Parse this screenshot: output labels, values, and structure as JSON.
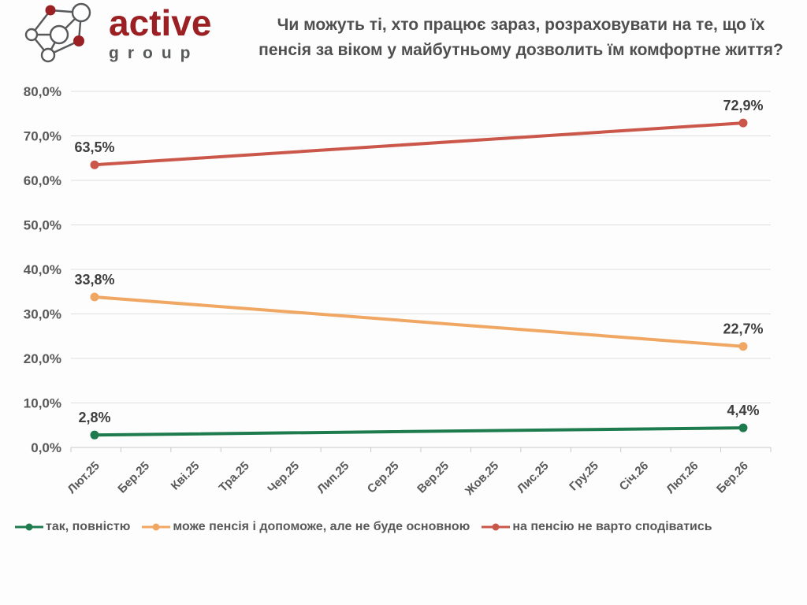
{
  "logo": {
    "brand": "active",
    "word": "group"
  },
  "title_lines": [
    "Чи можуть ті, хто працює зараз, розраховувати на те, що їх",
    "пенсія за віком у майбутньому дозволить їм комфортне життя?"
  ],
  "chart_data": {
    "type": "line",
    "title": "Чи можуть ті, хто працює зараз, розраховувати на те, що їх пенсія за віком у майбутньому дозволить їм комфортне життя?",
    "categories": [
      "Лют.25",
      "Бер.25",
      "Кві.25",
      "Тра.25",
      "Чер.25",
      "Лип.25",
      "Сер.25",
      "Вер.25",
      "Жов.25",
      "Лис.25",
      "Гру.25",
      "Січ.26",
      "Лют.26",
      "Бер.26"
    ],
    "y_axis": {
      "min": 0,
      "max": 80,
      "step": 10,
      "tick_labels": [
        "0,0%",
        "10,0%",
        "20,0%",
        "30,0%",
        "40,0%",
        "50,0%",
        "60,0%",
        "70,0%",
        "80,0%"
      ]
    },
    "grid": true,
    "legend_position": "bottom",
    "series": [
      {
        "name": "так, повністю",
        "color": "#1e7b4e",
        "points": [
          {
            "category": "Лют.25",
            "value": 2.8,
            "label": "2,8%"
          },
          {
            "category": "Бер.26",
            "value": 4.4,
            "label": "4,4%"
          }
        ]
      },
      {
        "name": "може пенсія і допоможе, але не буде основною",
        "color": "#f0a763",
        "points": [
          {
            "category": "Лют.25",
            "value": 33.8,
            "label": "33,8%"
          },
          {
            "category": "Бер.26",
            "value": 22.7,
            "label": "22,7%"
          }
        ]
      },
      {
        "name": "на пенсію не варто сподіватись",
        "color": "#cb574b",
        "points": [
          {
            "category": "Лют.25",
            "value": 63.5,
            "label": "63,5%"
          },
          {
            "category": "Бер.26",
            "value": 72.9,
            "label": "72,9%"
          }
        ]
      }
    ]
  }
}
